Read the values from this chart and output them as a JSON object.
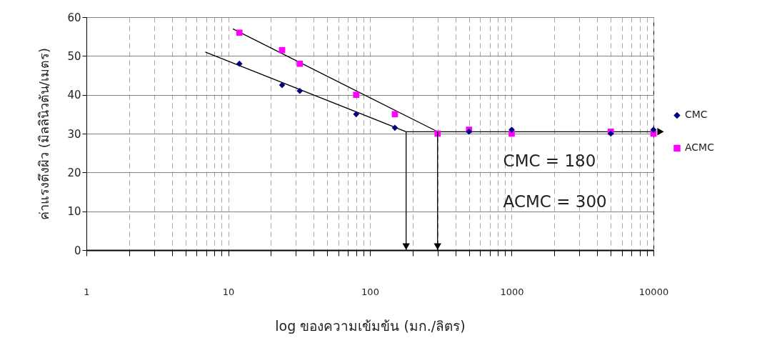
{
  "chart_data": {
    "type": "scatter",
    "xlabel": "log ของความเข้มข้น (มก./ลิตร)",
    "ylabel": "ค่าแรงตึงผิว (มิลลินิวตัน/เมตร)",
    "log": "x",
    "xlim": [
      1,
      10000
    ],
    "ylim": [
      0,
      60
    ],
    "xticks": [
      1,
      {
        "value": 2,
        "label": null
      },
      {
        "value": 3,
        "label": null
      },
      {
        "value": 4,
        "label": null
      },
      {
        "value": 5,
        "label": null
      },
      {
        "value": 6,
        "label": null
      },
      {
        "value": 7,
        "label": null
      },
      {
        "value": 8,
        "label": null
      },
      {
        "value": 9,
        "label": null
      },
      10,
      {
        "value": 20,
        "label": null
      },
      {
        "value": 30,
        "label": null
      },
      {
        "value": 40,
        "label": null
      },
      {
        "value": 50,
        "label": null
      },
      {
        "value": 60,
        "label": null
      },
      {
        "value": 70,
        "label": null
      },
      {
        "value": 80,
        "label": null
      },
      {
        "value": 90,
        "label": null
      },
      100,
      {
        "value": 200,
        "label": null
      },
      {
        "value": 300,
        "label": null
      },
      {
        "value": 400,
        "label": null
      },
      {
        "value": 500,
        "label": null
      },
      {
        "value": 600,
        "label": null
      },
      {
        "value": 700,
        "label": null
      },
      {
        "value": 800,
        "label": null
      },
      {
        "value": 900,
        "label": null
      },
      1000,
      {
        "value": 2000,
        "label": null
      },
      {
        "value": 3000,
        "label": null
      },
      {
        "value": 4000,
        "label": null
      },
      {
        "value": 5000,
        "label": null
      },
      {
        "value": 6000,
        "label": null
      },
      {
        "value": 7000,
        "label": null
      },
      {
        "value": 8000,
        "label": null
      },
      {
        "value": 9000,
        "label": null
      },
      10000
    ],
    "yticks": [
      0,
      10,
      20,
      30,
      40,
      50,
      60
    ],
    "grid": true,
    "legend": "right",
    "series": [
      {
        "name": "CMC",
        "marker": "diamond",
        "color": "#000080",
        "x": [
          12,
          24,
          32,
          80,
          150,
          500,
          1000,
          5000,
          10000
        ],
        "values": [
          48,
          42.5,
          41,
          35,
          31.5,
          30.5,
          31,
          30,
          31
        ]
      },
      {
        "name": "ACMC",
        "marker": "square",
        "color": "#ff00ff",
        "x": [
          12,
          24,
          32,
          80,
          150,
          300,
          500,
          1000,
          5000,
          10000
        ],
        "values": [
          56,
          51.5,
          48,
          40,
          35,
          30,
          31,
          30,
          30.5,
          30
        ]
      },
      {
        "type": "line",
        "color": "#000000",
        "x": [
          6.9,
          180,
          10000
        ],
        "values": [
          51,
          30.5,
          30.5
        ]
      },
      {
        "type": "line",
        "color": "#000000",
        "x": [
          10.8,
          300
        ],
        "values": [
          57,
          30.5
        ]
      }
    ],
    "annotations": [
      "CMC    = 180",
      "ACMC =  300"
    ]
  }
}
